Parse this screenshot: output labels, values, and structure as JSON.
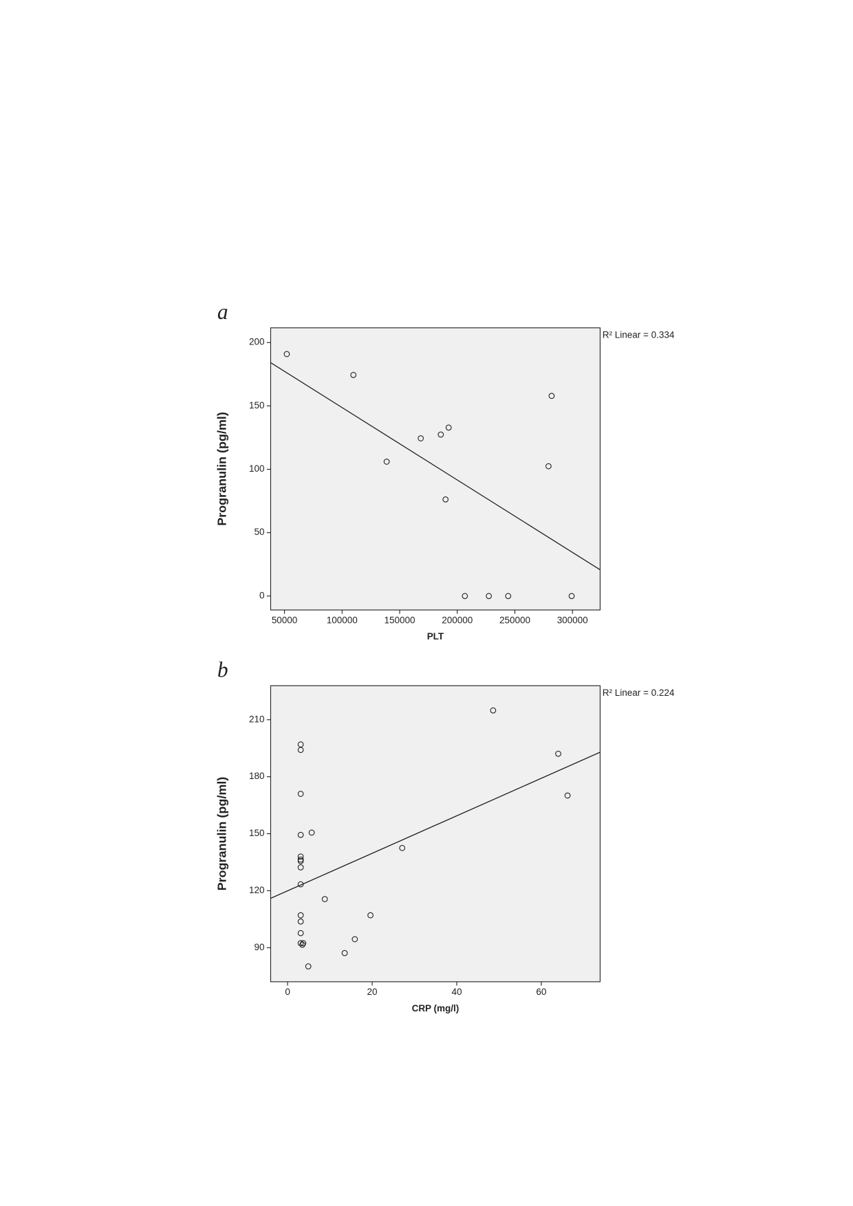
{
  "chart_data": [
    {
      "type": "scatter",
      "panel": "a",
      "x_label": "PLT",
      "y_label": "Progranulin (pg/ml)",
      "annotation": "R² Linear = 0.334",
      "x": [
        52000,
        109800,
        138700,
        168300,
        185700,
        192500,
        189800,
        206600,
        227400,
        244200,
        299300,
        279200,
        281900
      ],
      "y": [
        190.9,
        174.4,
        106,
        124.4,
        127.4,
        132.9,
        76.2,
        0,
        0,
        0,
        0,
        102.4,
        157.9
      ],
      "fit": {
        "x": [
          38000,
          324000
        ],
        "y": [
          184.1,
          20.7
        ]
      },
      "xlim": [
        38000,
        324000
      ],
      "ylim": [
        -11,
        211.6
      ],
      "xticks": [
        50000,
        100000,
        150000,
        200000,
        250000,
        300000
      ],
      "yticks": [
        0,
        50,
        100,
        150,
        200
      ]
    },
    {
      "type": "scatter",
      "panel": "b",
      "x_label": "CRP (mg/l)",
      "y_label": "Progranulin (pg/ml)",
      "annotation": "R² Linear = 0.224",
      "x": [
        3.1,
        3.1,
        3.1,
        3.1,
        3.1,
        3.1,
        3.1,
        3.1,
        3.1,
        3.1,
        3.1,
        3.1,
        3.1,
        3.5,
        3.7,
        5.7,
        4.9,
        8.8,
        13.5,
        15.9,
        19.6,
        27.1,
        48.6,
        64.0,
        66.2
      ],
      "y": [
        197.0,
        194.1,
        171.0,
        149.4,
        138.0,
        136.4,
        135.6,
        132.3,
        123.4,
        107.1,
        103.8,
        97.7,
        92.4,
        91.6,
        92.4,
        150.6,
        80.2,
        115.6,
        87.2,
        94.5,
        107.1,
        142.5,
        214.9,
        192.1,
        170.1
      ],
      "fit": {
        "x": [
          -4,
          73.9
        ],
        "y": [
          116.0,
          192.9
        ]
      },
      "xlim": [
        -4,
        73.9
      ],
      "ylim": [
        72.1,
        227.9
      ],
      "xticks": [
        0,
        20,
        40,
        60
      ],
      "yticks": [
        90,
        120,
        150,
        180,
        210
      ]
    }
  ]
}
